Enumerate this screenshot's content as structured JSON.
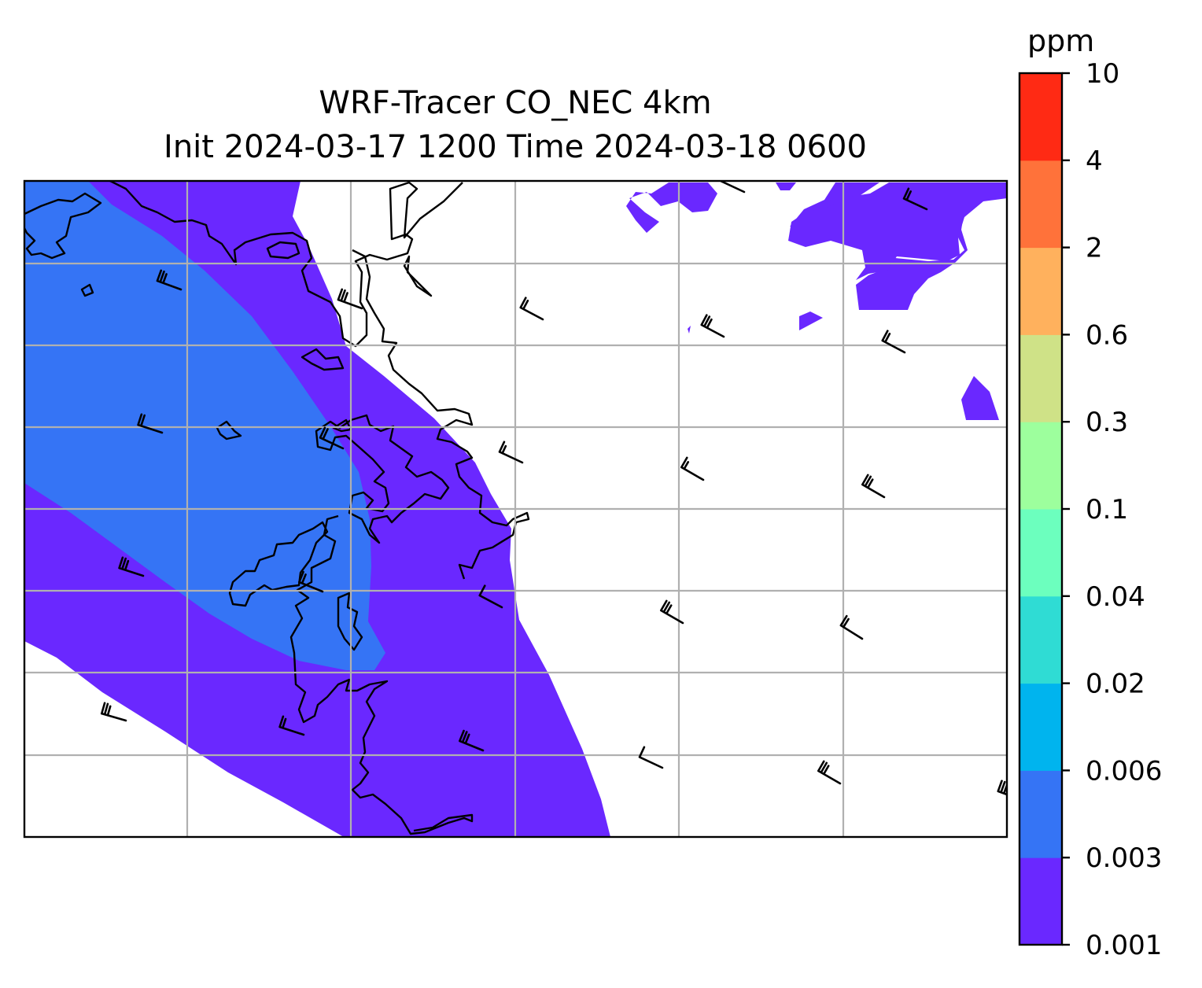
{
  "title": {
    "line1": "WRF-Tracer CO_NEC 4km",
    "line2": "Init 2024-03-17 1200 Time 2024-03-18 0600"
  },
  "colorbar": {
    "unit": "ppm",
    "levels": [
      "0.001",
      "0.003",
      "0.006",
      "0.02",
      "0.04",
      "0.1",
      "0.3",
      "0.6",
      "2",
      "4",
      "10"
    ],
    "colors": [
      "#6a28ff",
      "#3574f5",
      "#00b4ee",
      "#2fdcd4",
      "#6cffbe",
      "#9dff9d",
      "#cfe287",
      "#ffb15d",
      "#ff723a",
      "#ff2a14"
    ]
  },
  "map": {
    "features": [
      "coastline",
      "gridlines",
      "wind-barbs"
    ],
    "grid": true,
    "colors": {
      "level_0_001_0_003": "#6a28ff",
      "level_0_003_0_006": "#3574f5",
      "gridline": "#b0b0b0",
      "coastline": "#000000"
    }
  }
}
